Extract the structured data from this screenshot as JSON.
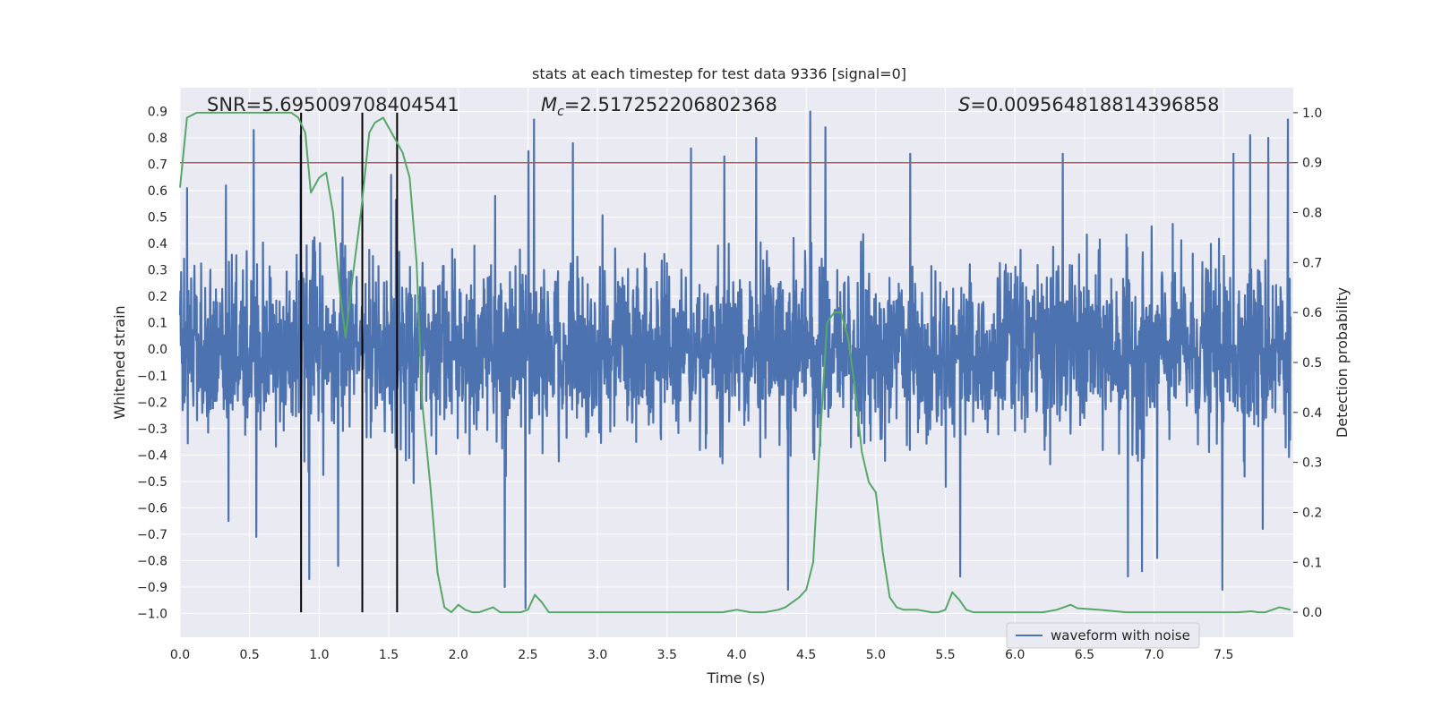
{
  "chart_data": {
    "type": "line",
    "title": "stats at each timestep for test data 9336 [signal=0]",
    "xlabel": "Time (s)",
    "ylabel_left": "Whitened strain",
    "ylabel_right": "Detection probability",
    "xlim": [
      0.0,
      8.0
    ],
    "ylim_left": [
      -1.09,
      0.99
    ],
    "ylim_right": [
      -0.05,
      1.05
    ],
    "x_ticks": [
      "0.0",
      "0.5",
      "1.0",
      "1.5",
      "2.0",
      "2.5",
      "3.0",
      "3.5",
      "4.0",
      "4.5",
      "5.0",
      "5.5",
      "6.0",
      "6.5",
      "7.0",
      "7.5"
    ],
    "y_ticks_left": [
      "0.9",
      "0.8",
      "0.7",
      "0.6",
      "0.5",
      "0.4",
      "0.3",
      "0.2",
      "0.1",
      "0.0",
      "−0.1",
      "−0.2",
      "−0.3",
      "−0.4",
      "−0.5",
      "−0.6",
      "−0.7",
      "−0.8",
      "−0.9",
      "−1.0"
    ],
    "y_ticks_right": [
      "1.0",
      "0.9",
      "0.8",
      "0.7",
      "0.6",
      "0.5",
      "0.4",
      "0.3",
      "0.2",
      "0.1",
      "0.0"
    ],
    "annotations": {
      "snr": "SNR=5.695009708404541",
      "mc_symbol": "M",
      "mc_sub": "c",
      "mc_value": "=2.517252206802368",
      "s_symbol": "S",
      "s_value": "=0.009564818814396858"
    },
    "threshold_probability": 0.9,
    "vertical_markers": [
      0.87,
      1.31,
      1.56
    ],
    "legend": {
      "entries": [
        "waveform with noise"
      ],
      "position": "lower-right"
    },
    "colors": {
      "waveform": "#4c72b0",
      "probability": "#55a868",
      "threshold": "#c44e52",
      "markers": "#000000",
      "axes_bg": "#eaeaf2",
      "grid": "#ffffff"
    },
    "series": [
      {
        "name": "waveform with noise",
        "axis": "left",
        "envelope_sigma": 0.16,
        "peaks": [
          {
            "t": 0.05,
            "v": 0.61
          },
          {
            "t": 0.33,
            "v": 0.62
          },
          {
            "t": 0.53,
            "v": 0.83
          },
          {
            "t": 0.87,
            "v": 0.81
          },
          {
            "t": 1.17,
            "v": 0.65
          },
          {
            "t": 1.52,
            "v": 0.66
          },
          {
            "t": 2.27,
            "v": 0.58
          },
          {
            "t": 2.51,
            "v": 0.75
          },
          {
            "t": 2.55,
            "v": 0.87
          },
          {
            "t": 2.83,
            "v": 0.78
          },
          {
            "t": 3.68,
            "v": 0.76
          },
          {
            "t": 3.92,
            "v": 0.73
          },
          {
            "t": 4.15,
            "v": 0.8
          },
          {
            "t": 4.54,
            "v": 0.9
          },
          {
            "t": 4.65,
            "v": 0.84
          },
          {
            "t": 5.26,
            "v": 0.74
          },
          {
            "t": 6.36,
            "v": 0.74
          },
          {
            "t": 6.83,
            "v": 0.72
          },
          {
            "t": 7.59,
            "v": 0.74
          },
          {
            "t": 7.71,
            "v": 0.81
          },
          {
            "t": 7.84,
            "v": 0.8
          },
          {
            "t": 7.98,
            "v": 0.87
          }
        ],
        "troughs": [
          {
            "t": 0.35,
            "v": -0.65
          },
          {
            "t": 0.55,
            "v": -0.71
          },
          {
            "t": 0.93,
            "v": -0.87
          },
          {
            "t": 1.14,
            "v": -0.82
          },
          {
            "t": 2.34,
            "v": -0.9
          },
          {
            "t": 2.49,
            "v": -0.98
          },
          {
            "t": 4.38,
            "v": -0.91
          },
          {
            "t": 5.62,
            "v": -0.86
          },
          {
            "t": 6.83,
            "v": -0.86
          },
          {
            "t": 6.93,
            "v": -0.84
          },
          {
            "t": 7.04,
            "v": -0.79
          },
          {
            "t": 7.51,
            "v": -0.91
          },
          {
            "t": 7.8,
            "v": -0.68
          }
        ]
      },
      {
        "name": "detection probability",
        "axis": "right",
        "x": [
          0.0,
          0.05,
          0.12,
          0.2,
          0.3,
          0.5,
          0.7,
          0.8,
          0.85,
          0.9,
          0.94,
          1.0,
          1.05,
          1.1,
          1.15,
          1.19,
          1.24,
          1.3,
          1.36,
          1.4,
          1.46,
          1.5,
          1.56,
          1.6,
          1.65,
          1.7,
          1.74,
          1.8,
          1.85,
          1.9,
          1.95,
          2.0,
          2.05,
          2.1,
          2.15,
          2.2,
          2.25,
          2.3,
          2.35,
          2.45,
          2.5,
          2.55,
          2.6,
          2.65,
          2.7,
          2.8,
          3.0,
          3.3,
          3.6,
          3.9,
          4.0,
          4.1,
          4.2,
          4.3,
          4.35,
          4.4,
          4.45,
          4.5,
          4.55,
          4.6,
          4.65,
          4.7,
          4.75,
          4.8,
          4.85,
          4.9,
          4.95,
          5.0,
          5.05,
          5.1,
          5.15,
          5.2,
          5.3,
          5.4,
          5.45,
          5.5,
          5.55,
          5.6,
          5.65,
          5.7,
          5.8,
          6.0,
          6.2,
          6.3,
          6.35,
          6.4,
          6.45,
          6.6,
          6.8,
          7.0,
          7.4,
          7.6,
          7.7,
          7.75,
          7.8,
          7.9,
          7.98
        ],
        "values": [
          0.85,
          0.99,
          1.0,
          1.0,
          1.0,
          1.0,
          1.0,
          1.0,
          0.99,
          0.96,
          0.84,
          0.87,
          0.88,
          0.8,
          0.64,
          0.55,
          0.67,
          0.8,
          0.96,
          0.98,
          0.99,
          0.97,
          0.94,
          0.92,
          0.87,
          0.7,
          0.42,
          0.25,
          0.08,
          0.01,
          0.0,
          0.015,
          0.005,
          0.0,
          0.0,
          0.005,
          0.01,
          0.0,
          0.0,
          0.0,
          0.005,
          0.035,
          0.02,
          0.0,
          0.0,
          0.0,
          0.0,
          0.0,
          0.0,
          0.0,
          0.005,
          0.0,
          0.0,
          0.005,
          0.01,
          0.02,
          0.03,
          0.045,
          0.1,
          0.35,
          0.58,
          0.6,
          0.6,
          0.55,
          0.45,
          0.32,
          0.26,
          0.24,
          0.12,
          0.03,
          0.01,
          0.005,
          0.005,
          0.0,
          0.0,
          0.005,
          0.04,
          0.025,
          0.005,
          0.0,
          0.0,
          0.0,
          0.0,
          0.005,
          0.01,
          0.015,
          0.008,
          0.005,
          0.0,
          0.0,
          0.0,
          0.0,
          0.002,
          0.0,
          0.0,
          0.01,
          0.005
        ]
      }
    ]
  }
}
